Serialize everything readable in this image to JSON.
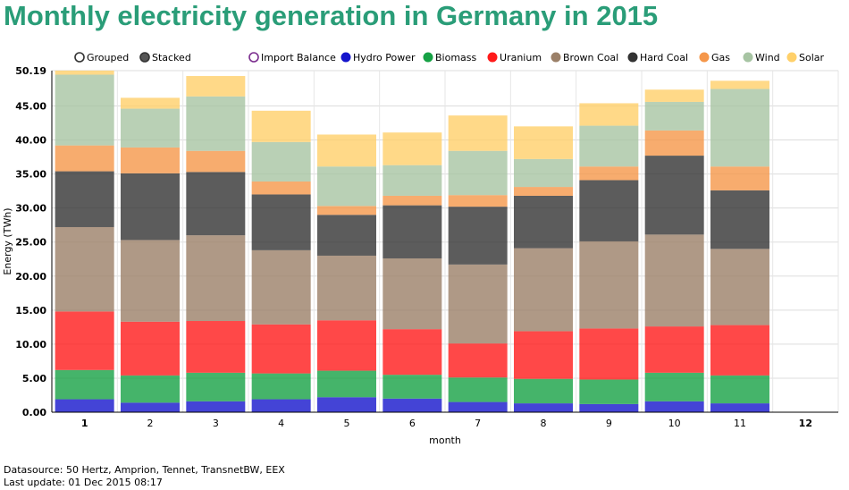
{
  "title": "Monthly electricity generation in Germany in 2015",
  "footer": {
    "datasource": "Datasource: 50 Hertz, Amprion, Tennet, TransnetBW, EEX",
    "last_update": "Last update: 01 Dec 2015 08:17"
  },
  "mode_legend": [
    {
      "label": "Grouped",
      "selected": false,
      "color": "#444444"
    },
    {
      "label": "Stacked",
      "selected": true,
      "color": "#555555"
    }
  ],
  "chart_data": {
    "type": "bar",
    "stacked": true,
    "xlabel": "month",
    "ylabel": "Energy (TWh)",
    "ylim": [
      0,
      50.19
    ],
    "yticks": [
      "0.00",
      "5.00",
      "10.00",
      "15.00",
      "20.00",
      "25.00",
      "30.00",
      "35.00",
      "40.00",
      "45.00",
      "50.19"
    ],
    "yticks_values": [
      0,
      5,
      10,
      15,
      20,
      25,
      30,
      35,
      40,
      45,
      50.19
    ],
    "categories": [
      "1",
      "2",
      "3",
      "4",
      "5",
      "6",
      "7",
      "8",
      "9",
      "10",
      "11",
      "12"
    ],
    "bold_categories": [
      "1",
      "12"
    ],
    "grid": true,
    "legend_position": "top",
    "series": [
      {
        "name": "Import Balance",
        "color": "#7b2d8e",
        "hollow": true,
        "values": [
          0,
          0,
          0,
          0,
          0,
          0,
          0,
          0,
          0,
          0,
          0,
          0
        ]
      },
      {
        "name": "Hydro Power",
        "color": "#1515cc",
        "values": [
          1.9,
          1.4,
          1.6,
          1.9,
          2.2,
          2.0,
          1.5,
          1.3,
          1.2,
          1.6,
          1.3,
          0
        ]
      },
      {
        "name": "Biomass",
        "color": "#16a145",
        "values": [
          4.3,
          4.0,
          4.2,
          3.8,
          3.9,
          3.5,
          3.6,
          3.6,
          3.6,
          4.2,
          4.1,
          0
        ]
      },
      {
        "name": "Uranium",
        "color": "#ff1a1a",
        "values": [
          8.6,
          7.9,
          7.6,
          7.2,
          7.4,
          6.7,
          5.0,
          7.0,
          7.5,
          6.8,
          7.4,
          0
        ]
      },
      {
        "name": "Brown Coal",
        "color": "#9b8068",
        "values": [
          12.4,
          12.0,
          12.6,
          10.9,
          9.5,
          10.4,
          11.6,
          12.2,
          12.8,
          13.5,
          11.2,
          0
        ]
      },
      {
        "name": "Hard Coal",
        "color": "#333333",
        "values": [
          8.2,
          9.8,
          9.3,
          8.2,
          6.0,
          7.8,
          8.5,
          7.7,
          9.0,
          11.6,
          8.6,
          0
        ]
      },
      {
        "name": "Gas",
        "color": "#f5974a",
        "values": [
          3.8,
          3.8,
          3.1,
          1.9,
          1.3,
          1.4,
          1.7,
          1.3,
          2.0,
          3.7,
          3.5,
          0
        ]
      },
      {
        "name": "Wind",
        "color": "#a7c4a3",
        "values": [
          10.4,
          5.7,
          8.0,
          5.8,
          5.8,
          4.5,
          6.5,
          4.1,
          6.0,
          4.2,
          11.4,
          0
        ]
      },
      {
        "name": "Solar",
        "color": "#ffd06a",
        "values": [
          0.6,
          1.6,
          3.0,
          4.6,
          4.7,
          4.8,
          5.2,
          4.8,
          3.3,
          1.8,
          1.2,
          0
        ]
      }
    ]
  }
}
